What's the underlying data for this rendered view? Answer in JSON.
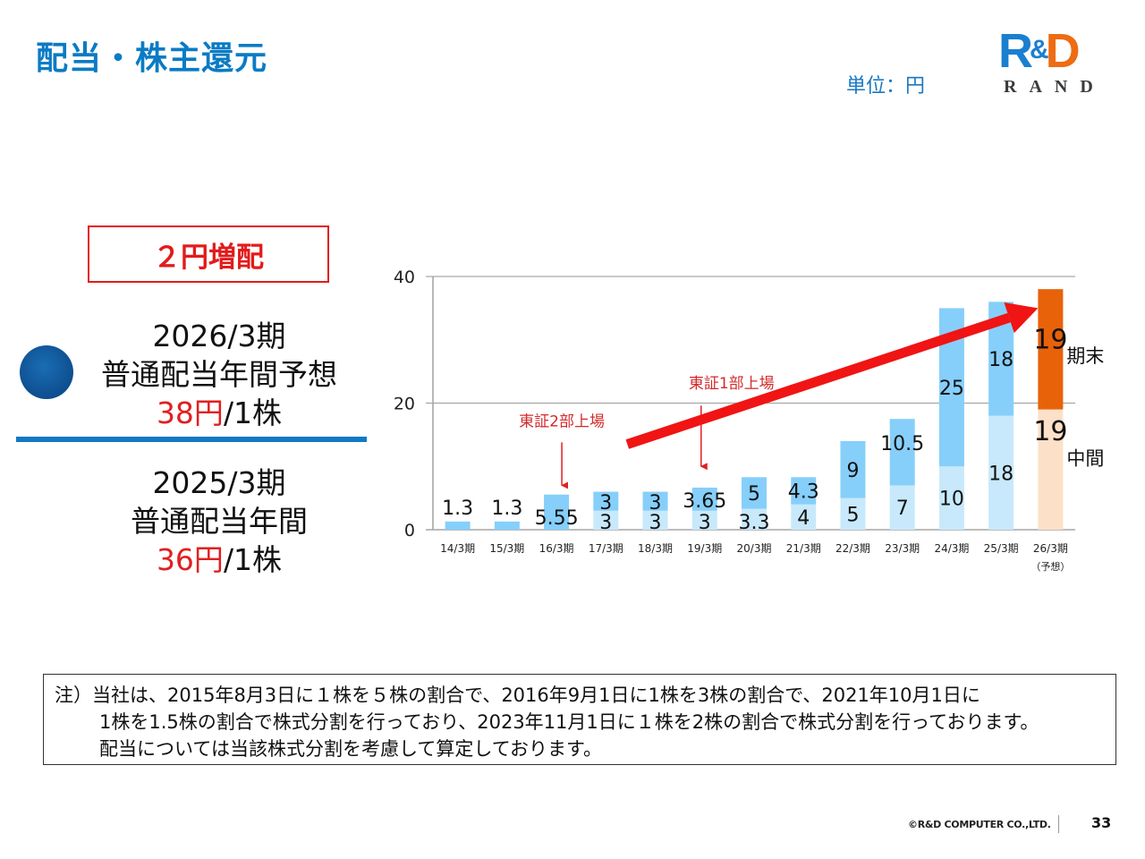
{
  "header": {
    "title": "配当・株主還元",
    "unit_label": "単位：円",
    "logo": {
      "brand_r": "R",
      "brand_amp": "&",
      "brand_d": "D",
      "subtitle": "RAND"
    }
  },
  "summary": {
    "badge": "２円増配",
    "forecast": {
      "period": "2026/3期",
      "label": "普通配当年間予想",
      "amount": "38円",
      "per": "/1株"
    },
    "previous": {
      "period": "2025/3期",
      "label": "普通配当年間",
      "amount": "36円",
      "per": "/1株"
    }
  },
  "chart_data": {
    "type": "bar",
    "stacked": true,
    "title": "",
    "xlabel": "",
    "ylabel": "",
    "ylim": [
      0,
      40
    ],
    "yticks": [
      0,
      20,
      40
    ],
    "grid": true,
    "categories": [
      "14/3期",
      "15/3期",
      "16/3期",
      "17/3期",
      "18/3期",
      "19/3期",
      "20/3期",
      "21/3期",
      "22/3期",
      "23/3期",
      "24/3期",
      "25/3期",
      "26/3期"
    ],
    "category_sub": [
      "",
      "",
      "",
      "",
      "",
      "",
      "",
      "",
      "",
      "",
      "",
      "",
      "（予想）"
    ],
    "series": [
      {
        "name": "中間",
        "values": [
          0,
          0,
          0,
          3,
          3,
          3,
          3.3,
          4,
          5,
          7,
          10,
          18,
          19
        ],
        "labels": [
          "",
          "",
          "",
          "3",
          "3",
          "3",
          "3.3",
          "4",
          "5",
          "7",
          "10",
          "18",
          "19"
        ],
        "color": "#c8e9fb",
        "forecast_color": "#fde0c8"
      },
      {
        "name": "期末",
        "values": [
          1.3,
          1.3,
          5.55,
          3,
          3,
          3.65,
          5,
          4.3,
          9,
          10.5,
          25,
          18,
          19
        ],
        "labels": [
          "1.3",
          "1.3",
          "5.55",
          "3",
          "3",
          "3.65",
          "5",
          "4.3",
          "9",
          "10.5",
          "25",
          "18",
          "19"
        ],
        "color": "#86cffa",
        "forecast_color": "#e8620a"
      }
    ],
    "legend": [
      "期末",
      "中間"
    ],
    "legend_placement": "right",
    "annotations": [
      {
        "text": "東証2部上場",
        "category": "16/3期",
        "arrow": "down"
      },
      {
        "text": "東証1部上場",
        "category": "19/3期",
        "arrow": "down"
      },
      {
        "text": "",
        "type": "trend-arrow",
        "from_category": "17/3期",
        "to_category": "26/3期"
      }
    ]
  },
  "note": {
    "line1": "注）当社は、2015年8月3日に１株を５株の割合で、2016年9月1日に1株を3株の割合で、2021年10月1日に",
    "line2": "1株を1.5株の割合で株式分割を行っており、2023年11月1日に１株を2株の割合で株式分割を行っております。",
    "line3": "配当については当該株式分割を考慮して算定しております。"
  },
  "footer": {
    "copyright": "©R&D COMPUTER CO.,LTD.",
    "page": "33"
  }
}
